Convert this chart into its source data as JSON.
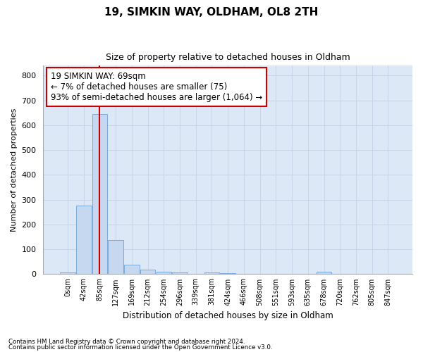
{
  "title_line1": "19, SIMKIN WAY, OLDHAM, OL8 2TH",
  "title_line2": "Size of property relative to detached houses in Oldham",
  "xlabel": "Distribution of detached houses by size in Oldham",
  "ylabel": "Number of detached properties",
  "footnote1": "Contains HM Land Registry data © Crown copyright and database right 2024.",
  "footnote2": "Contains public sector information licensed under the Open Government Licence v3.0.",
  "bar_labels": [
    "0sqm",
    "42sqm",
    "85sqm",
    "127sqm",
    "169sqm",
    "212sqm",
    "254sqm",
    "296sqm",
    "339sqm",
    "381sqm",
    "424sqm",
    "466sqm",
    "508sqm",
    "551sqm",
    "593sqm",
    "635sqm",
    "678sqm",
    "720sqm",
    "762sqm",
    "805sqm",
    "847sqm"
  ],
  "bar_values": [
    7,
    275,
    645,
    138,
    37,
    18,
    11,
    7,
    0,
    8,
    5,
    0,
    0,
    0,
    0,
    0,
    10,
    0,
    0,
    0,
    0
  ],
  "bar_color": "#c5d8f0",
  "bar_edge_color": "#7aaadd",
  "property_line_x": 2.0,
  "annotation_text": "19 SIMKIN WAY: 69sqm\n← 7% of detached houses are smaller (75)\n93% of semi-detached houses are larger (1,064) →",
  "annotation_box_color": "#ffffff",
  "annotation_box_edge_color": "#cc0000",
  "property_line_color": "#cc0000",
  "ylim": [
    0,
    840
  ],
  "yticks": [
    0,
    100,
    200,
    300,
    400,
    500,
    600,
    700,
    800
  ],
  "grid_color": "#c8d4e8",
  "bg_color": "#dce8f5",
  "fig_bg_color": "#ffffff"
}
